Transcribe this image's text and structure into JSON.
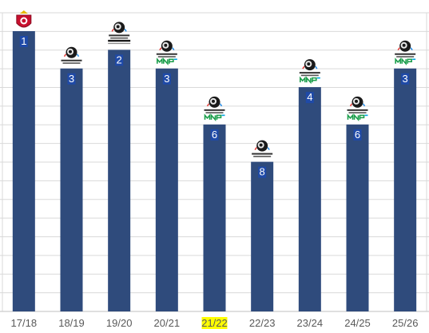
{
  "chart_data": {
    "type": "bar",
    "categories": [
      "17/18",
      "18/19",
      "19/20",
      "20/21",
      "21/22",
      "22/23",
      "23/24",
      "24/25",
      "25/26"
    ],
    "values": [
      1,
      3,
      2,
      3,
      6,
      8,
      4,
      6,
      3
    ],
    "y_reversed": true,
    "ylim": [
      0,
      16
    ],
    "grid": true,
    "highlighted_category": "21/22",
    "bar_color": "#2f4b7c",
    "highlight_color": "#ffff00",
    "logos": [
      "fnl-crest-logo",
      "rpl-logo",
      "rpl-tinkoff-logo",
      "rpl-mir-logo",
      "rpl-mir-logo",
      "rpl-logo",
      "rpl-mir-logo",
      "rpl-mir-logo",
      "rpl-mir-logo"
    ]
  }
}
